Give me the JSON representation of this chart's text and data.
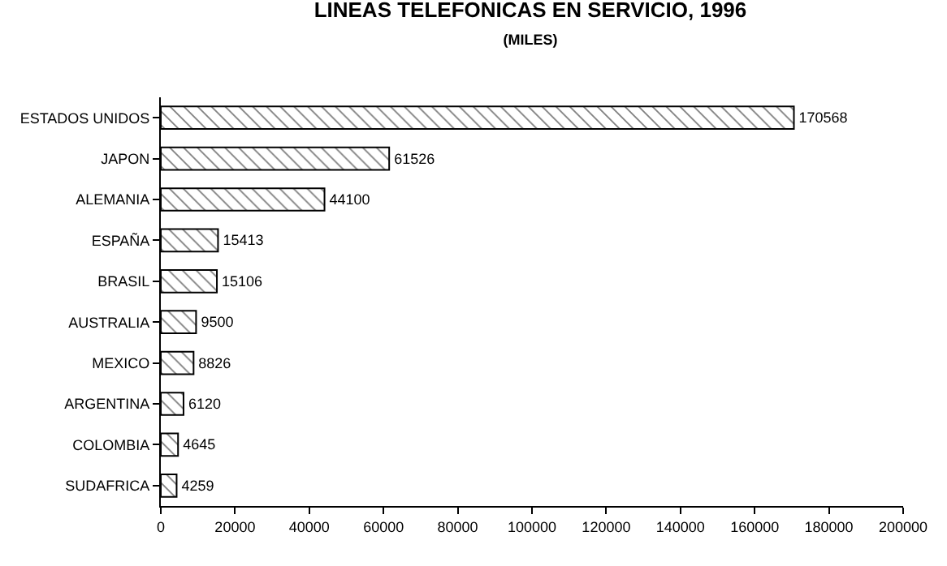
{
  "chart_data": {
    "type": "bar",
    "orientation": "horizontal",
    "title": "LINEAS TELEFONICAS EN SERVICIO, 1996",
    "subtitle": "(MILES)",
    "categories": [
      "ESTADOS UNIDOS",
      "JAPON",
      "ALEMANIA",
      "ESPAÑA",
      "BRASIL",
      "AUSTRALIA",
      "MEXICO",
      "ARGENTINA",
      "COLOMBIA",
      "SUDAFRICA"
    ],
    "values": [
      170568,
      61526,
      44100,
      15413,
      15106,
      9500,
      8826,
      6120,
      4645,
      4259
    ],
    "color": "#000000",
    "xlim": [
      0,
      200000
    ],
    "xticks": [
      0,
      20000,
      40000,
      60000,
      80000,
      100000,
      120000,
      140000,
      160000,
      180000,
      200000
    ],
    "data_labels": true,
    "grid": false
  }
}
